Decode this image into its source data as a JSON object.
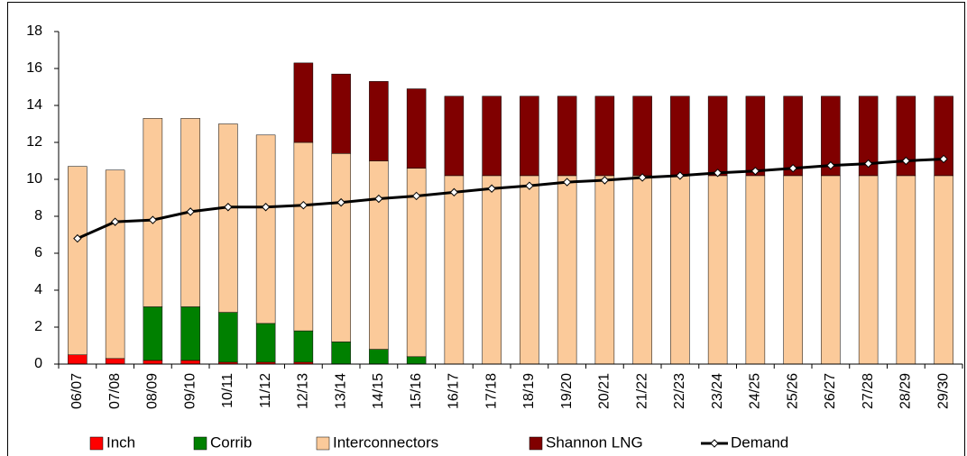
{
  "chart_data": {
    "type": "bar",
    "stacked": true,
    "categories": [
      "06/07",
      "07/08",
      "08/09",
      "09/10",
      "10/11",
      "11/12",
      "12/13",
      "13/14",
      "14/15",
      "15/16",
      "16/17",
      "17/18",
      "18/19",
      "19/20",
      "20/21",
      "21/22",
      "22/23",
      "23/24",
      "24/25",
      "25/26",
      "26/27",
      "27/28",
      "28/29",
      "29/30"
    ],
    "series": [
      {
        "name": "Inch",
        "color": "#ff0000",
        "values": [
          0.5,
          0.3,
          0.2,
          0.2,
          0.1,
          0.1,
          0.1,
          0,
          0,
          0,
          0,
          0,
          0,
          0,
          0,
          0,
          0,
          0,
          0,
          0,
          0,
          0,
          0,
          0
        ]
      },
      {
        "name": "Corrib",
        "color": "#008000",
        "values": [
          0,
          0,
          2.9,
          2.9,
          2.7,
          2.1,
          1.7,
          1.2,
          0.8,
          0.4,
          0,
          0,
          0,
          0,
          0,
          0,
          0,
          0,
          0,
          0,
          0,
          0,
          0,
          0
        ]
      },
      {
        "name": "Interconnectors",
        "color": "#fbca9a",
        "values": [
          10.2,
          10.2,
          10.2,
          10.2,
          10.2,
          10.2,
          10.2,
          10.2,
          10.2,
          10.2,
          10.2,
          10.2,
          10.2,
          10.2,
          10.2,
          10.2,
          10.2,
          10.2,
          10.2,
          10.2,
          10.2,
          10.2,
          10.2,
          10.2
        ]
      },
      {
        "name": "Shannon LNG",
        "color": "#800000",
        "values": [
          0,
          0,
          0,
          0,
          0,
          0,
          4.3,
          4.3,
          4.3,
          4.3,
          4.3,
          4.3,
          4.3,
          4.3,
          4.3,
          4.3,
          4.3,
          4.3,
          4.3,
          4.3,
          4.3,
          4.3,
          4.3,
          4.3
        ]
      },
      {
        "name": "Demand",
        "type": "line",
        "color": "#000000",
        "values": [
          6.8,
          7.7,
          7.8,
          8.25,
          8.5,
          8.5,
          8.6,
          8.75,
          8.95,
          9.1,
          9.3,
          9.5,
          9.65,
          9.85,
          9.95,
          10.1,
          10.2,
          10.35,
          10.45,
          10.6,
          10.75,
          10.85,
          11.0,
          11.1
        ]
      }
    ],
    "ylim": [
      0,
      18
    ],
    "yticks": [
      0,
      2,
      4,
      6,
      8,
      10,
      12,
      14,
      16,
      18
    ],
    "grid": false,
    "legend": "bottom"
  }
}
